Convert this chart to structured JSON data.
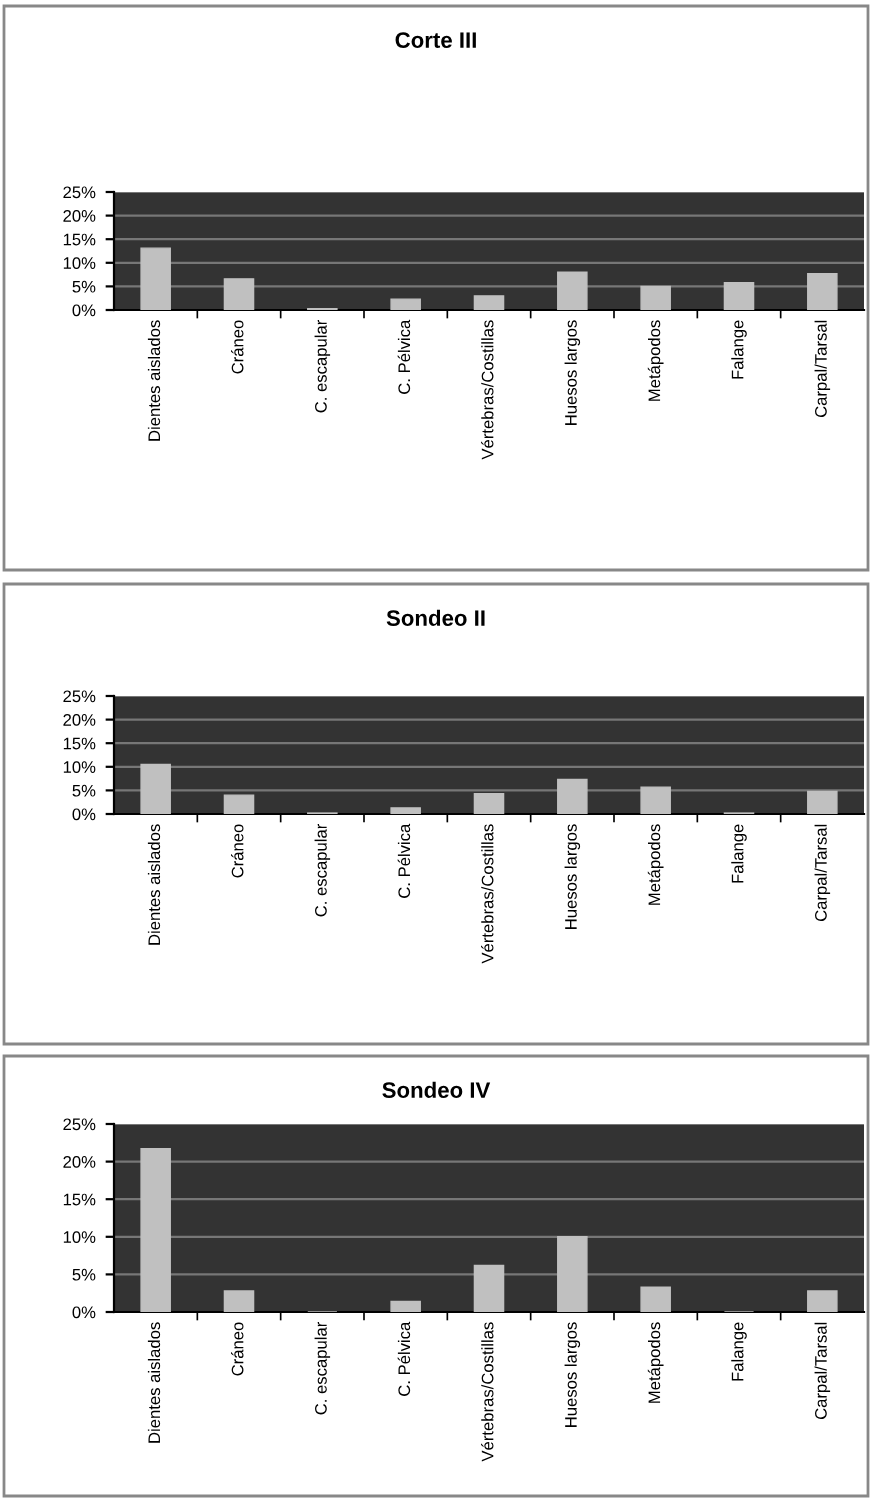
{
  "chart_data": [
    {
      "type": "bar",
      "title": "Corte III",
      "categories": [
        "Dientes aislados",
        "Cráneo",
        "C. escapular",
        "C. Pélvica",
        "Vértebras/Costillas",
        "Huesos largos",
        "Metápodos",
        "Falange",
        "Carpal/Tarsal"
      ],
      "values": [
        13.1,
        6.6,
        0.3,
        2.3,
        3.0,
        8.0,
        5.0,
        5.8,
        7.7
      ],
      "color": "#c0c0c0",
      "ylim": [
        0,
        25
      ],
      "yticks": [
        {
          "value": 0,
          "label": "0%"
        },
        {
          "value": 5,
          "label": "5%"
        },
        {
          "value": 10,
          "label": "10%"
        },
        {
          "value": 15,
          "label": "15%"
        },
        {
          "value": 20,
          "label": "20%"
        },
        {
          "value": 25,
          "label": "25%"
        }
      ],
      "grid": "y"
    },
    {
      "type": "bar",
      "title": "Sondeo II",
      "categories": [
        "Dientes aislados",
        "Cráneo",
        "C. escapular",
        "C. Pélvica",
        "Vértebras/Costillas",
        "Huesos largos",
        "Metápodos",
        "Falange",
        "Carpal/Tarsal"
      ],
      "values": [
        10.5,
        4.0,
        0.2,
        1.3,
        4.3,
        7.3,
        5.7,
        0.2,
        4.8
      ],
      "color": "#c0c0c0",
      "ylim": [
        0,
        25
      ],
      "yticks": [
        {
          "value": 0,
          "label": "0%"
        },
        {
          "value": 5,
          "label": "5%"
        },
        {
          "value": 10,
          "label": "10%"
        },
        {
          "value": 15,
          "label": "15%"
        },
        {
          "value": 20,
          "label": "20%"
        },
        {
          "value": 25,
          "label": "25%"
        }
      ],
      "grid": "y"
    },
    {
      "type": "bar",
      "title": "Sondeo IV",
      "categories": [
        "Dientes aislados",
        "Cráneo",
        "C. escapular",
        "C. Pélvica",
        "Vértebras/Costillas",
        "Huesos largos",
        "Metápodos",
        "Falange",
        "Carpal/Tarsal"
      ],
      "values": [
        21.7,
        2.8,
        0,
        1.4,
        6.2,
        10.0,
        3.3,
        0,
        2.8
      ],
      "color": "#c0c0c0",
      "ylim": [
        0,
        25
      ],
      "yticks": [
        {
          "value": 0,
          "label": "0%"
        },
        {
          "value": 5,
          "label": "5%"
        },
        {
          "value": 10,
          "label": "10%"
        },
        {
          "value": 15,
          "label": "15%"
        },
        {
          "value": 20,
          "label": "20%"
        },
        {
          "value": 25,
          "label": "25%"
        }
      ],
      "grid": "y"
    }
  ]
}
